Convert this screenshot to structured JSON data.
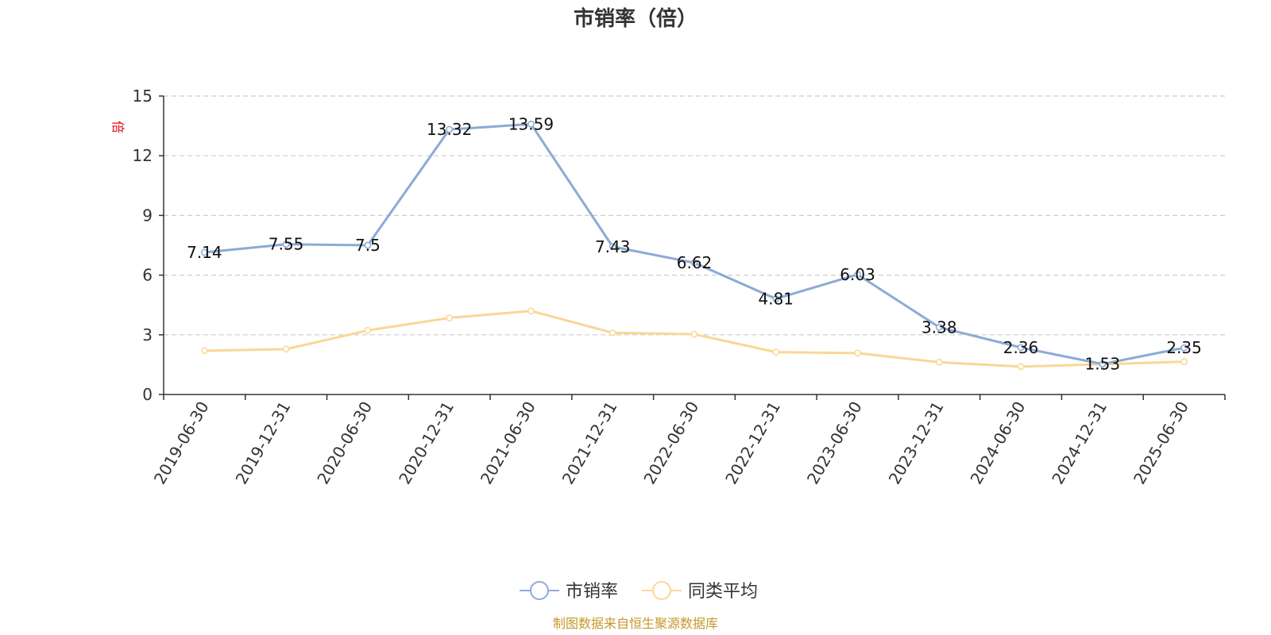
{
  "chart_data": {
    "type": "line",
    "title": "市销率（倍）",
    "unit_label": "倍",
    "categories": [
      "2019-06-30",
      "2019-12-31",
      "2020-06-30",
      "2020-12-31",
      "2021-06-30",
      "2021-12-31",
      "2022-06-30",
      "2022-12-31",
      "2023-06-30",
      "2023-12-31",
      "2024-06-30",
      "2024-12-31",
      "2025-06-30"
    ],
    "ylim": [
      0,
      15
    ],
    "yticks": [
      "0",
      "3",
      "6",
      "9",
      "12",
      "15"
    ],
    "grid": true,
    "legend_position": "bottom",
    "series": [
      {
        "name": "市销率",
        "color": "#8caad6",
        "values": [
          7.14,
          7.55,
          7.5,
          13.32,
          13.59,
          7.43,
          6.62,
          4.81,
          6.03,
          3.38,
          2.36,
          1.53,
          2.35
        ],
        "labels": [
          "7.14",
          "7.55",
          "7.5",
          "13.32",
          "13.59",
          "7.43",
          "6.62",
          "4.81",
          "6.03",
          "3.38",
          "2.36",
          "1.53",
          "2.35"
        ]
      },
      {
        "name": "同类平均",
        "color": "#fad796",
        "values": [
          2.2,
          2.28,
          3.22,
          3.85,
          4.2,
          3.1,
          3.03,
          2.13,
          2.08,
          1.62,
          1.4,
          1.52,
          1.65
        ]
      }
    ],
    "unit_color": "#e60012",
    "source_color": "#c8962a"
  },
  "footer": {
    "source": "制图数据来自恒生聚源数据库"
  }
}
